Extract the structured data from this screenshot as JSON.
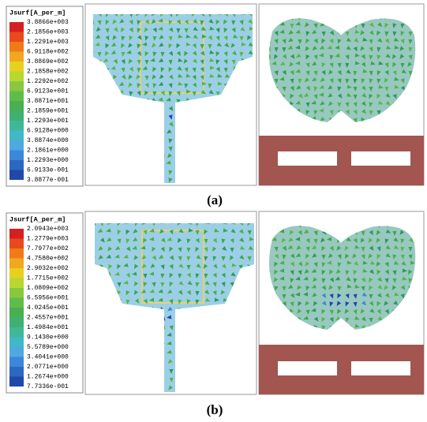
{
  "colors": [
    "#d42020",
    "#e84a1c",
    "#f07a18",
    "#f0a820",
    "#e8d020",
    "#b8d830",
    "#88c840",
    "#60bc48",
    "#48b050",
    "#40b070",
    "#40b898",
    "#40b8c8",
    "#50a8e0",
    "#3c88d8",
    "#2c68c0",
    "#2048a8"
  ],
  "figures": [
    {
      "legend": {
        "title": "Jsurf[A_per_m]",
        "labels": [
          "3.8866e+003",
          "2.1856e+003",
          "1.2291e+003",
          "6.9118e+002",
          "3.8869e+002",
          "2.1858e+002",
          "1.2292e+002",
          "6.9123e+001",
          "3.8871e+001",
          "2.1859e+001",
          "1.2293e+001",
          "6.9128e+000",
          "3.8874e+000",
          "2.1861e+000",
          "1.2293e+000",
          "6.9133e-001",
          "3.8877e-001"
        ]
      },
      "caption": "(a)"
    },
    {
      "legend": {
        "title": "Jsurf[A_per_m]",
        "labels": [
          "2.0943e+003",
          "1.2779e+003",
          "7.7977e+002",
          "4.7580e+002",
          "2.9032e+002",
          "1.7715e+002",
          "1.0809e+002",
          "6.5956e+001",
          "4.0245e+001",
          "2.4557e+001",
          "1.4984e+001",
          "9.1430e+000",
          "5.5789e+000",
          "3.4041e+000",
          "2.0771e+000",
          "1.2674e+000",
          "7.7336e-001"
        ]
      },
      "caption": "(b)"
    }
  ]
}
